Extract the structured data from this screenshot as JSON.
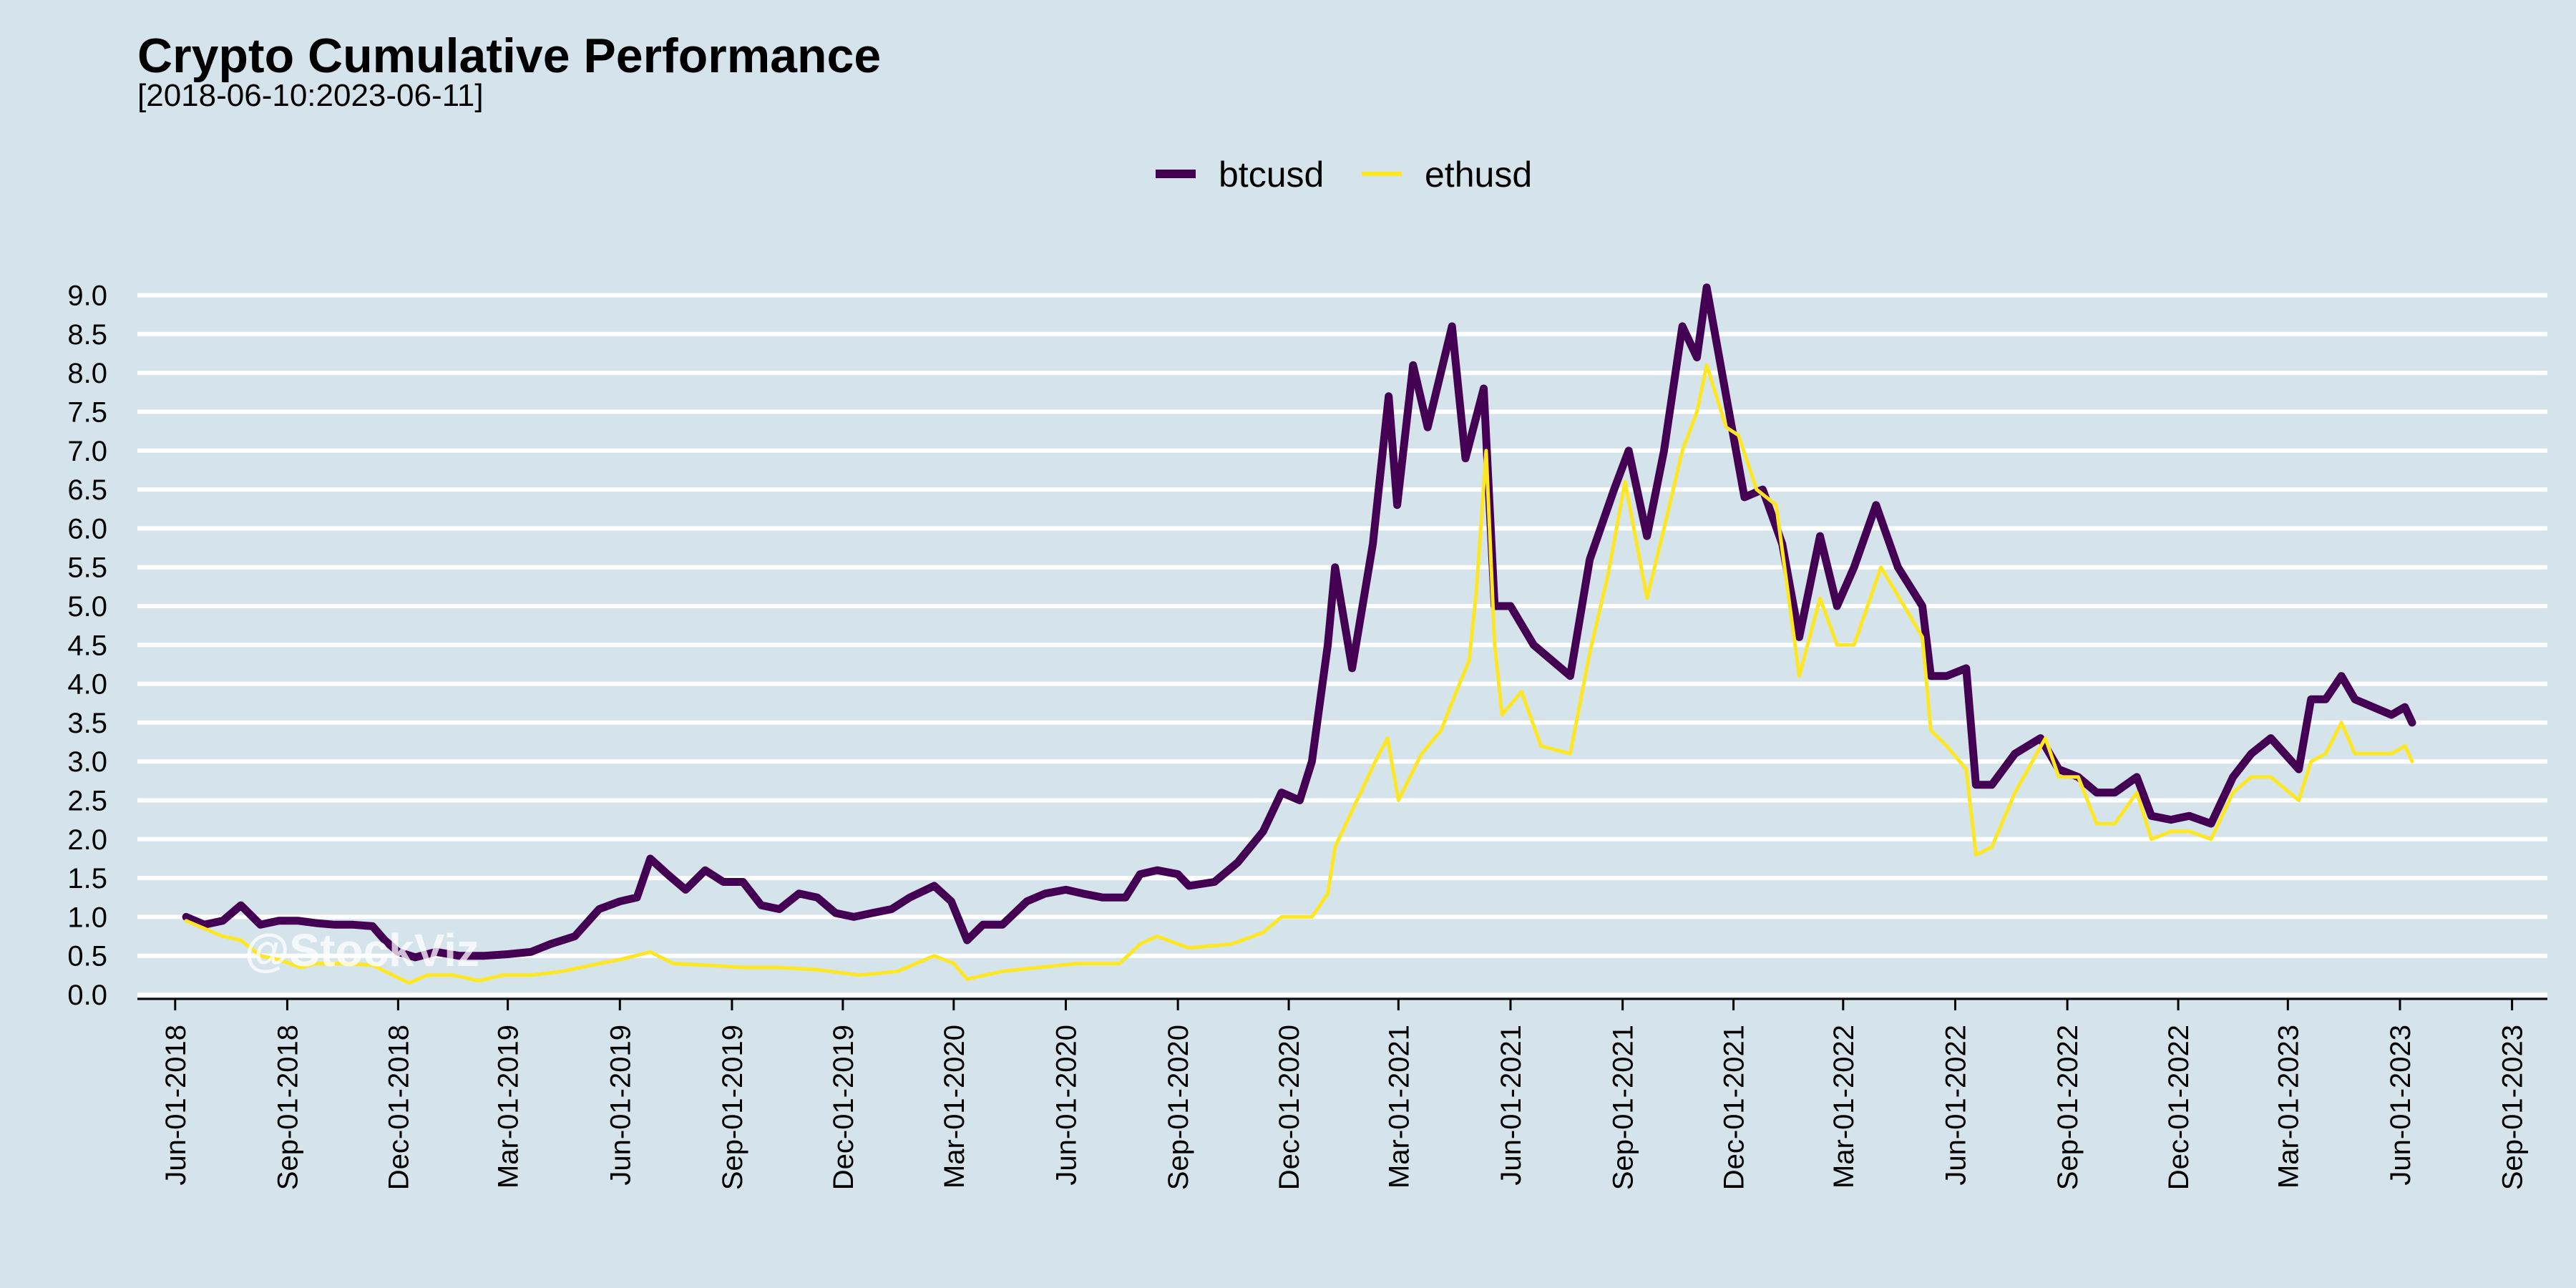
{
  "header": {
    "title": "Crypto Cumulative Performance",
    "subtitle": "[2018-06-10:2023-06-11]"
  },
  "watermark": "@StockViz",
  "colors": {
    "background": "#d5e4eb",
    "grid": "#ffffff",
    "axis": "#000000",
    "btcusd": "#440154",
    "ethusd": "#fde725"
  },
  "chart_data": {
    "type": "line",
    "title": "Crypto Cumulative Performance",
    "subtitle": "[2018-06-10:2023-06-11]",
    "xlabel": "",
    "ylabel": "",
    "xlim": [
      "2018-05-01",
      "2023-09-30"
    ],
    "ylim": [
      0,
      9.3
    ],
    "grid": true,
    "legend_position": "top",
    "y_ticks": [
      0.0,
      0.5,
      1.0,
      1.5,
      2.0,
      2.5,
      3.0,
      3.5,
      4.0,
      4.5,
      5.0,
      5.5,
      6.0,
      6.5,
      7.0,
      7.5,
      8.0,
      8.5,
      9.0
    ],
    "y_tick_labels": [
      "0.0",
      "0.5",
      "1.0",
      "1.5",
      "2.0",
      "2.5",
      "3.0",
      "3.5",
      "4.0",
      "4.5",
      "5.0",
      "5.5",
      "6.0",
      "6.5",
      "7.0",
      "7.5",
      "8.0",
      "8.5",
      "9.0"
    ],
    "x_ticks": [
      "2018-06-01",
      "2018-09-01",
      "2018-12-01",
      "2019-03-01",
      "2019-06-01",
      "2019-09-01",
      "2019-12-01",
      "2020-03-01",
      "2020-06-01",
      "2020-09-01",
      "2020-12-01",
      "2021-03-01",
      "2021-06-01",
      "2021-09-01",
      "2021-12-01",
      "2022-03-01",
      "2022-06-01",
      "2022-09-01",
      "2022-12-01",
      "2023-03-01",
      "2023-06-01",
      "2023-09-01"
    ],
    "x_tick_labels": [
      "Jun-01-2018",
      "Sep-01-2018",
      "Dec-01-2018",
      "Mar-01-2019",
      "Jun-01-2019",
      "Sep-01-2019",
      "Dec-01-2019",
      "Mar-01-2020",
      "Jun-01-2020",
      "Sep-01-2020",
      "Dec-01-2020",
      "Mar-01-2021",
      "Jun-01-2021",
      "Sep-01-2021",
      "Dec-01-2021",
      "Mar-01-2022",
      "Jun-01-2022",
      "Sep-01-2022",
      "Dec-01-2022",
      "Mar-01-2023",
      "Jun-01-2023",
      "Sep-01-2023"
    ],
    "series": [
      {
        "name": "btcusd",
        "color": "#440154",
        "points": [
          [
            "2018-06-10",
            1.0
          ],
          [
            "2018-06-25",
            0.9
          ],
          [
            "2018-07-10",
            0.95
          ],
          [
            "2018-07-25",
            1.15
          ],
          [
            "2018-08-10",
            0.9
          ],
          [
            "2018-08-25",
            0.95
          ],
          [
            "2018-09-10",
            0.95
          ],
          [
            "2018-09-25",
            0.92
          ],
          [
            "2018-10-10",
            0.9
          ],
          [
            "2018-10-25",
            0.9
          ],
          [
            "2018-11-10",
            0.88
          ],
          [
            "2018-11-20",
            0.7
          ],
          [
            "2018-12-01",
            0.55
          ],
          [
            "2018-12-15",
            0.48
          ],
          [
            "2019-01-01",
            0.55
          ],
          [
            "2019-01-20",
            0.5
          ],
          [
            "2019-02-10",
            0.5
          ],
          [
            "2019-03-01",
            0.52
          ],
          [
            "2019-03-20",
            0.55
          ],
          [
            "2019-04-05",
            0.65
          ],
          [
            "2019-04-25",
            0.75
          ],
          [
            "2019-05-15",
            1.1
          ],
          [
            "2019-06-01",
            1.2
          ],
          [
            "2019-06-15",
            1.25
          ],
          [
            "2019-06-26",
            1.75
          ],
          [
            "2019-07-10",
            1.55
          ],
          [
            "2019-07-25",
            1.35
          ],
          [
            "2019-08-10",
            1.6
          ],
          [
            "2019-08-25",
            1.45
          ],
          [
            "2019-09-10",
            1.45
          ],
          [
            "2019-09-25",
            1.15
          ],
          [
            "2019-10-10",
            1.1
          ],
          [
            "2019-10-26",
            1.3
          ],
          [
            "2019-11-10",
            1.25
          ],
          [
            "2019-11-25",
            1.05
          ],
          [
            "2019-12-10",
            1.0
          ],
          [
            "2019-12-25",
            1.05
          ],
          [
            "2020-01-10",
            1.1
          ],
          [
            "2020-01-25",
            1.25
          ],
          [
            "2020-02-14",
            1.4
          ],
          [
            "2020-02-28",
            1.2
          ],
          [
            "2020-03-12",
            0.7
          ],
          [
            "2020-03-25",
            0.9
          ],
          [
            "2020-04-10",
            0.9
          ],
          [
            "2020-04-30",
            1.2
          ],
          [
            "2020-05-15",
            1.3
          ],
          [
            "2020-06-01",
            1.35
          ],
          [
            "2020-06-15",
            1.3
          ],
          [
            "2020-07-01",
            1.25
          ],
          [
            "2020-07-20",
            1.25
          ],
          [
            "2020-08-01",
            1.55
          ],
          [
            "2020-08-15",
            1.6
          ],
          [
            "2020-09-01",
            1.55
          ],
          [
            "2020-09-10",
            1.4
          ],
          [
            "2020-10-01",
            1.45
          ],
          [
            "2020-10-20",
            1.7
          ],
          [
            "2020-11-10",
            2.1
          ],
          [
            "2020-11-25",
            2.6
          ],
          [
            "2020-12-10",
            2.5
          ],
          [
            "2020-12-20",
            3.0
          ],
          [
            "2021-01-02",
            4.5
          ],
          [
            "2021-01-08",
            5.5
          ],
          [
            "2021-01-22",
            4.2
          ],
          [
            "2021-02-08",
            5.8
          ],
          [
            "2021-02-21",
            7.7
          ],
          [
            "2021-02-28",
            6.3
          ],
          [
            "2021-03-13",
            8.1
          ],
          [
            "2021-03-25",
            7.3
          ],
          [
            "2021-04-14",
            8.6
          ],
          [
            "2021-04-25",
            6.9
          ],
          [
            "2021-05-10",
            7.8
          ],
          [
            "2021-05-19",
            5.0
          ],
          [
            "2021-06-01",
            5.0
          ],
          [
            "2021-06-20",
            4.5
          ],
          [
            "2021-07-20",
            4.1
          ],
          [
            "2021-08-05",
            5.6
          ],
          [
            "2021-08-25",
            6.5
          ],
          [
            "2021-09-06",
            7.0
          ],
          [
            "2021-09-21",
            5.9
          ],
          [
            "2021-10-05",
            7.0
          ],
          [
            "2021-10-20",
            8.6
          ],
          [
            "2021-11-01",
            8.2
          ],
          [
            "2021-11-09",
            9.1
          ],
          [
            "2021-11-25",
            7.7
          ],
          [
            "2021-12-10",
            6.4
          ],
          [
            "2021-12-25",
            6.5
          ],
          [
            "2022-01-10",
            5.8
          ],
          [
            "2022-01-24",
            4.6
          ],
          [
            "2022-02-10",
            5.9
          ],
          [
            "2022-02-24",
            5.0
          ],
          [
            "2022-03-10",
            5.5
          ],
          [
            "2022-03-28",
            6.3
          ],
          [
            "2022-04-15",
            5.5
          ],
          [
            "2022-05-05",
            5.0
          ],
          [
            "2022-05-12",
            4.1
          ],
          [
            "2022-05-25",
            4.1
          ],
          [
            "2022-06-10",
            4.2
          ],
          [
            "2022-06-18",
            2.7
          ],
          [
            "2022-07-01",
            2.7
          ],
          [
            "2022-07-20",
            3.1
          ],
          [
            "2022-08-10",
            3.3
          ],
          [
            "2022-08-25",
            2.9
          ],
          [
            "2022-09-10",
            2.8
          ],
          [
            "2022-09-25",
            2.6
          ],
          [
            "2022-10-10",
            2.6
          ],
          [
            "2022-10-28",
            2.8
          ],
          [
            "2022-11-09",
            2.3
          ],
          [
            "2022-11-25",
            2.25
          ],
          [
            "2022-12-10",
            2.3
          ],
          [
            "2022-12-28",
            2.2
          ],
          [
            "2023-01-15",
            2.8
          ],
          [
            "2023-01-30",
            3.1
          ],
          [
            "2023-02-15",
            3.3
          ],
          [
            "2023-03-10",
            2.9
          ],
          [
            "2023-03-20",
            3.8
          ],
          [
            "2023-04-01",
            3.8
          ],
          [
            "2023-04-14",
            4.1
          ],
          [
            "2023-04-25",
            3.8
          ],
          [
            "2023-05-10",
            3.7
          ],
          [
            "2023-05-25",
            3.6
          ],
          [
            "2023-06-05",
            3.7
          ],
          [
            "2023-06-11",
            3.5
          ]
        ]
      },
      {
        "name": "ethusd",
        "color": "#fde725",
        "points": [
          [
            "2018-06-10",
            0.95
          ],
          [
            "2018-06-25",
            0.85
          ],
          [
            "2018-07-10",
            0.75
          ],
          [
            "2018-07-25",
            0.7
          ],
          [
            "2018-08-10",
            0.5
          ],
          [
            "2018-08-25",
            0.45
          ],
          [
            "2018-09-12",
            0.35
          ],
          [
            "2018-09-25",
            0.4
          ],
          [
            "2018-10-15",
            0.4
          ],
          [
            "2018-11-10",
            0.38
          ],
          [
            "2018-11-20",
            0.3
          ],
          [
            "2018-12-10",
            0.15
          ],
          [
            "2018-12-25",
            0.25
          ],
          [
            "2019-01-15",
            0.25
          ],
          [
            "2019-02-05",
            0.18
          ],
          [
            "2019-02-25",
            0.25
          ],
          [
            "2019-03-20",
            0.25
          ],
          [
            "2019-04-15",
            0.3
          ],
          [
            "2019-05-15",
            0.4
          ],
          [
            "2019-06-01",
            0.45
          ],
          [
            "2019-06-26",
            0.55
          ],
          [
            "2019-07-15",
            0.4
          ],
          [
            "2019-08-10",
            0.38
          ],
          [
            "2019-09-10",
            0.35
          ],
          [
            "2019-10-10",
            0.35
          ],
          [
            "2019-11-10",
            0.32
          ],
          [
            "2019-12-15",
            0.25
          ],
          [
            "2020-01-15",
            0.3
          ],
          [
            "2020-02-14",
            0.5
          ],
          [
            "2020-03-01",
            0.4
          ],
          [
            "2020-03-12",
            0.2
          ],
          [
            "2020-04-10",
            0.3
          ],
          [
            "2020-05-10",
            0.35
          ],
          [
            "2020-06-10",
            0.4
          ],
          [
            "2020-07-15",
            0.4
          ],
          [
            "2020-08-01",
            0.65
          ],
          [
            "2020-08-15",
            0.75
          ],
          [
            "2020-09-10",
            0.6
          ],
          [
            "2020-10-15",
            0.65
          ],
          [
            "2020-11-10",
            0.8
          ],
          [
            "2020-11-25",
            1.0
          ],
          [
            "2020-12-20",
            1.0
          ],
          [
            "2021-01-02",
            1.3
          ],
          [
            "2021-01-08",
            1.9
          ],
          [
            "2021-01-20",
            2.3
          ],
          [
            "2021-02-10",
            3.0
          ],
          [
            "2021-02-20",
            3.3
          ],
          [
            "2021-03-01",
            2.5
          ],
          [
            "2021-03-20",
            3.1
          ],
          [
            "2021-04-05",
            3.4
          ],
          [
            "2021-04-15",
            3.8
          ],
          [
            "2021-04-28",
            4.3
          ],
          [
            "2021-05-04",
            5.2
          ],
          [
            "2021-05-12",
            7.0
          ],
          [
            "2021-05-19",
            4.5
          ],
          [
            "2021-05-25",
            3.6
          ],
          [
            "2021-06-10",
            3.9
          ],
          [
            "2021-06-26",
            3.2
          ],
          [
            "2021-07-20",
            3.1
          ],
          [
            "2021-08-05",
            4.4
          ],
          [
            "2021-08-20",
            5.4
          ],
          [
            "2021-09-03",
            6.6
          ],
          [
            "2021-09-21",
            5.1
          ],
          [
            "2021-10-05",
            6.0
          ],
          [
            "2021-10-20",
            7.0
          ],
          [
            "2021-11-01",
            7.5
          ],
          [
            "2021-11-09",
            8.1
          ],
          [
            "2021-11-25",
            7.3
          ],
          [
            "2021-12-05",
            7.2
          ],
          [
            "2021-12-20",
            6.5
          ],
          [
            "2022-01-05",
            6.3
          ],
          [
            "2022-01-24",
            4.1
          ],
          [
            "2022-02-10",
            5.1
          ],
          [
            "2022-02-24",
            4.5
          ],
          [
            "2022-03-10",
            4.5
          ],
          [
            "2022-04-01",
            5.5
          ],
          [
            "2022-04-20",
            5.0
          ],
          [
            "2022-05-05",
            4.6
          ],
          [
            "2022-05-12",
            3.4
          ],
          [
            "2022-05-25",
            3.2
          ],
          [
            "2022-06-10",
            2.9
          ],
          [
            "2022-06-18",
            1.8
          ],
          [
            "2022-07-01",
            1.9
          ],
          [
            "2022-07-20",
            2.6
          ],
          [
            "2022-08-14",
            3.3
          ],
          [
            "2022-08-25",
            2.8
          ],
          [
            "2022-09-10",
            2.8
          ],
          [
            "2022-09-25",
            2.2
          ],
          [
            "2022-10-10",
            2.2
          ],
          [
            "2022-10-28",
            2.6
          ],
          [
            "2022-11-09",
            2.0
          ],
          [
            "2022-11-25",
            2.1
          ],
          [
            "2022-12-10",
            2.1
          ],
          [
            "2022-12-28",
            2.0
          ],
          [
            "2023-01-15",
            2.6
          ],
          [
            "2023-01-30",
            2.8
          ],
          [
            "2023-02-15",
            2.8
          ],
          [
            "2023-03-10",
            2.5
          ],
          [
            "2023-03-20",
            3.0
          ],
          [
            "2023-04-01",
            3.1
          ],
          [
            "2023-04-14",
            3.5
          ],
          [
            "2023-04-25",
            3.1
          ],
          [
            "2023-05-10",
            3.1
          ],
          [
            "2023-05-25",
            3.1
          ],
          [
            "2023-06-05",
            3.2
          ],
          [
            "2023-06-11",
            3.0
          ]
        ]
      }
    ]
  }
}
